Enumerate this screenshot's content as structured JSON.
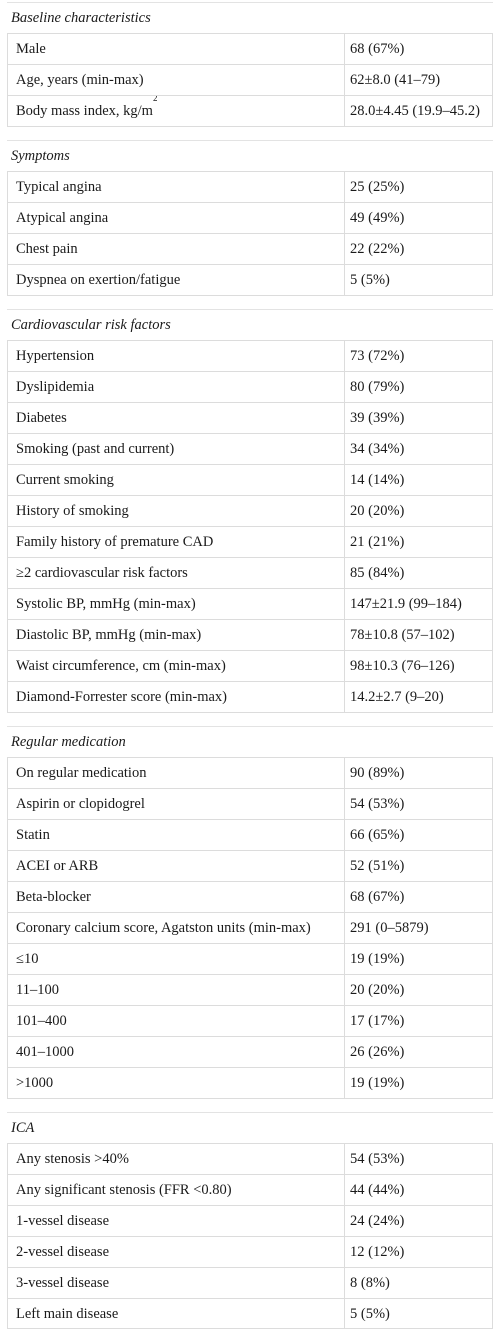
{
  "sections": [
    {
      "title": "Baseline characteristics",
      "rows": [
        {
          "label": "Male",
          "value": "68 (67%)"
        },
        {
          "label": "Age, years (min-max)",
          "value": "62±8.0 (41–79)"
        },
        {
          "label": "Body mass index, kg/m",
          "label_sup": "2",
          "value": "28.0±4.45 (19.9–45.2)"
        }
      ]
    },
    {
      "title": "Symptoms",
      "rows": [
        {
          "label": "Typical angina",
          "value": "25 (25%)"
        },
        {
          "label": "Atypical angina",
          "value": "49 (49%)"
        },
        {
          "label": "Chest pain",
          "value": "22 (22%)"
        },
        {
          "label": "Dyspnea on exertion/fatigue",
          "value": "5 (5%)"
        }
      ]
    },
    {
      "title": "Cardiovascular risk factors",
      "rows": [
        {
          "label": "Hypertension",
          "value": "73 (72%)"
        },
        {
          "label": "Dyslipidemia",
          "value": "80 (79%)"
        },
        {
          "label": "Diabetes",
          "value": "39 (39%)"
        },
        {
          "label": "Smoking (past and current)",
          "value": "34 (34%)"
        },
        {
          "label": "Current smoking",
          "value": "14 (14%)"
        },
        {
          "label": "History of smoking",
          "value": "20 (20%)"
        },
        {
          "label": "Family history of premature CAD",
          "value": "21 (21%)"
        },
        {
          "label": "≥2 cardiovascular risk factors",
          "value": "85 (84%)"
        },
        {
          "label": "Systolic BP, mmHg (min-max)",
          "value": "147±21.9 (99–184)"
        },
        {
          "label": "Diastolic BP, mmHg (min-max)",
          "value": "78±10.8 (57–102)"
        },
        {
          "label": "Waist circumference, cm (min-max)",
          "value": "98±10.3 (76–126)"
        },
        {
          "label": "Diamond-Forrester score (min-max)",
          "value": "14.2±2.7 (9–20)"
        }
      ]
    },
    {
      "title": "Regular medication",
      "rows": [
        {
          "label": "On regular medication",
          "value": "90 (89%)"
        },
        {
          "label": "Aspirin or clopidogrel",
          "value": "54 (53%)"
        },
        {
          "label": "Statin",
          "value": "66 (65%)"
        },
        {
          "label": "ACEI or ARB",
          "value": "52 (51%)"
        },
        {
          "label": "Beta-blocker",
          "value": "68 (67%)"
        },
        {
          "label": "Coronary calcium score, Agatston units (min-max)",
          "value": "291 (0–5879)"
        },
        {
          "label": "≤10",
          "value": "19 (19%)"
        },
        {
          "label": "11–100",
          "value": "20 (20%)"
        },
        {
          "label": "101–400",
          "value": "17 (17%)"
        },
        {
          "label": "401–1000",
          "value": "26 (26%)"
        },
        {
          "label": ">1000",
          "value": "19 (19%)"
        }
      ]
    },
    {
      "title": "ICA",
      "rows": [
        {
          "label": "Any stenosis >40%",
          "value": "54 (53%)"
        },
        {
          "label": "Any significant stenosis (FFR <0.80)",
          "value": "44 (44%)"
        },
        {
          "label": "1-vessel disease",
          "value": "24 (24%)"
        },
        {
          "label": "2-vessel disease",
          "value": "12 (12%)"
        },
        {
          "label": "3-vessel disease",
          "value": "8 (8%)"
        },
        {
          "label": "Left main disease",
          "value": "5 (5%)"
        }
      ]
    }
  ]
}
